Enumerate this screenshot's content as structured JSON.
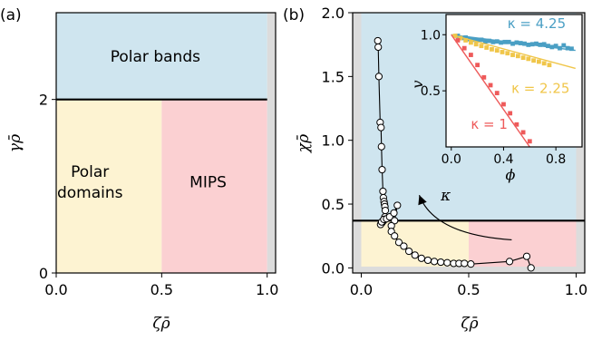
{
  "colors": {
    "polar_bands": "#cfe5ef",
    "polar_domains": "#fdf3d2",
    "mips": "#fbd0d2",
    "grey_strip": "#dcdcdc",
    "kappa_high": "#4a9fc4",
    "kappa_mid": "#f0c64a",
    "kappa_low": "#ee5a5a"
  },
  "chart_data": [
    {
      "type": "area",
      "panel_label": "(a)",
      "xlabel": "ζρ̄",
      "ylabel": "γρ̄",
      "xlim": [
        0,
        1.04
      ],
      "ylim": [
        0,
        3.0
      ],
      "xticks": [
        {
          "value": 0.0,
          "label": "0.0"
        },
        {
          "value": 0.5,
          "label": "0.5"
        },
        {
          "value": 1.0,
          "label": "1.0"
        }
      ],
      "yticks": [
        {
          "value": 0,
          "label": "0"
        },
        {
          "value": 2,
          "label": "2"
        }
      ],
      "boundary_y": 2.0,
      "regions": [
        {
          "name": "Polar bands",
          "lines": [
            "Polar bands"
          ],
          "x": [
            0,
            1.0
          ],
          "y": [
            2.0,
            3.0
          ],
          "color_key": "polar_bands",
          "label_at": [
            0.47,
            2.5
          ]
        },
        {
          "name": "Polar domains",
          "lines": [
            "Polar",
            "domains"
          ],
          "x": [
            0,
            0.5
          ],
          "y": [
            0,
            2.0
          ],
          "color_key": "polar_domains",
          "label_at": [
            0.16,
            1.05
          ]
        },
        {
          "name": "MIPS",
          "lines": [
            "MIPS"
          ],
          "x": [
            0.5,
            1.0
          ],
          "y": [
            0,
            2.0
          ],
          "color_key": "mips",
          "label_at": [
            0.72,
            1.05
          ]
        }
      ],
      "grey_strip_x": [
        1.0,
        1.04
      ]
    },
    {
      "type": "scatter",
      "panel_label": "(b)",
      "xlabel": "ζρ̄",
      "ylabel": "χρ̄",
      "xlim": [
        -0.04,
        1.04
      ],
      "ylim": [
        -0.04,
        2.0
      ],
      "xticks": [
        {
          "value": 0.0,
          "label": "0.0"
        },
        {
          "value": 0.5,
          "label": "0.5"
        },
        {
          "value": 1.0,
          "label": "1.0"
        }
      ],
      "yticks": [
        {
          "value": 0.0,
          "label": "0.0"
        },
        {
          "value": 0.5,
          "label": "0.5"
        },
        {
          "value": 1.0,
          "label": "1.0"
        },
        {
          "value": 1.5,
          "label": "1.5"
        },
        {
          "value": 2.0,
          "label": "2.0"
        }
      ],
      "boundary_y": 0.37,
      "shading": {
        "upper": {
          "x": [
            0,
            1.0
          ],
          "y": [
            0.37,
            2.0
          ],
          "color_key": "polar_bands"
        },
        "lower_left": {
          "x": [
            0,
            0.5
          ],
          "y": [
            0.01,
            0.37
          ],
          "color_key": "polar_domains"
        },
        "lower_right": {
          "x": [
            0.5,
            1.0
          ],
          "y": [
            0.01,
            0.37
          ],
          "color_key": "mips"
        }
      },
      "arrow": {
        "from": [
          0.7,
          0.22
        ],
        "to": [
          0.27,
          0.57
        ],
        "label": "κ",
        "label_at": [
          0.37,
          0.53
        ]
      },
      "series": [
        {
          "x": [
            0.077,
            0.079,
            0.082,
            0.088,
            0.092,
            0.094,
            0.097,
            0.101,
            0.103,
            0.106,
            0.108,
            0.11,
            0.112,
            0.11,
            0.104,
            0.097,
            0.09,
            0.095,
            0.105,
            0.118,
            0.132,
            0.152,
            0.168,
            0.155,
            0.14,
            0.14,
            0.155,
            0.175,
            0.198,
            0.222,
            0.25,
            0.28,
            0.31,
            0.34,
            0.37,
            0.4,
            0.43,
            0.455,
            0.48,
            0.51,
            0.69,
            0.77,
            0.79
          ],
          "y": [
            1.78,
            1.73,
            1.5,
            1.14,
            1.1,
            0.95,
            0.77,
            0.6,
            0.55,
            0.52,
            0.5,
            0.48,
            0.45,
            0.4,
            0.37,
            0.355,
            0.34,
            0.36,
            0.38,
            0.385,
            0.4,
            0.43,
            0.49,
            0.37,
            0.33,
            0.285,
            0.25,
            0.2,
            0.17,
            0.13,
            0.1,
            0.075,
            0.06,
            0.05,
            0.045,
            0.04,
            0.035,
            0.035,
            0.035,
            0.03,
            0.05,
            0.09,
            0.0
          ]
        }
      ],
      "inset": {
        "xlabel": "ϕ",
        "ylabel": "v",
        "xlim": [
          -0.04,
          1.0
        ],
        "ylim": [
          0.0,
          1.18
        ],
        "xticks": [
          {
            "value": 0.0,
            "label": "0.0"
          },
          {
            "value": 0.4,
            "label": "0.4"
          },
          {
            "value": 0.8,
            "label": "0.8"
          }
        ],
        "yticks": [
          {
            "value": 0.5,
            "label": "0.5"
          },
          {
            "value": 1.0,
            "label": "1.0"
          }
        ],
        "series": [
          {
            "name": "κ = 4.25",
            "color_key": "kappa_high",
            "fit_x": [
              0.0,
              0.95
            ],
            "fit_y": [
              1.0,
              0.86
            ],
            "points_x": [
              0.05,
              0.08,
              0.11,
              0.14,
              0.17,
              0.2,
              0.23,
              0.26,
              0.29,
              0.32,
              0.35,
              0.38,
              0.41,
              0.44,
              0.47,
              0.5,
              0.53,
              0.56,
              0.59,
              0.62,
              0.65,
              0.68,
              0.71,
              0.74,
              0.77,
              0.8,
              0.83,
              0.86,
              0.89,
              0.92
            ],
            "points_y": [
              0.99,
              0.97,
              0.975,
              0.96,
              0.955,
              0.95,
              0.955,
              0.94,
              0.945,
              0.935,
              0.94,
              0.93,
              0.935,
              0.935,
              0.92,
              0.93,
              0.925,
              0.92,
              0.91,
              0.915,
              0.92,
              0.91,
              0.915,
              0.9,
              0.89,
              0.9,
              0.88,
              0.905,
              0.88,
              0.875
            ],
            "label_at": [
              0.43,
              1.06
            ]
          },
          {
            "name": "κ = 2.25",
            "color_key": "kappa_mid",
            "fit_x": [
              0.0,
              0.95
            ],
            "fit_y": [
              1.0,
              0.7
            ],
            "points_x": [
              0.03,
              0.07,
              0.11,
              0.15,
              0.19,
              0.23,
              0.27,
              0.31,
              0.35,
              0.39,
              0.43,
              0.47,
              0.51,
              0.55,
              0.59,
              0.63,
              0.67,
              0.71,
              0.75
            ],
            "points_y": [
              0.99,
              0.97,
              0.95,
              0.93,
              0.915,
              0.9,
              0.885,
              0.87,
              0.86,
              0.845,
              0.835,
              0.82,
              0.81,
              0.795,
              0.785,
              0.77,
              0.76,
              0.745,
              0.73
            ],
            "label_at": [
              0.46,
              0.48
            ]
          },
          {
            "name": "κ = 1",
            "color_key": "kappa_low",
            "fit_x": [
              0.0,
              0.6
            ],
            "fit_y": [
              1.0,
              0.0
            ],
            "points_x": [
              0.05,
              0.1,
              0.15,
              0.2,
              0.25,
              0.3,
              0.35,
              0.4,
              0.45,
              0.5,
              0.55,
              0.6
            ],
            "points_y": [
              0.95,
              0.88,
              0.82,
              0.73,
              0.62,
              0.55,
              0.48,
              0.38,
              0.3,
              0.2,
              0.13,
              0.05
            ],
            "label_at": [
              0.15,
              0.16
            ]
          }
        ]
      }
    }
  ]
}
